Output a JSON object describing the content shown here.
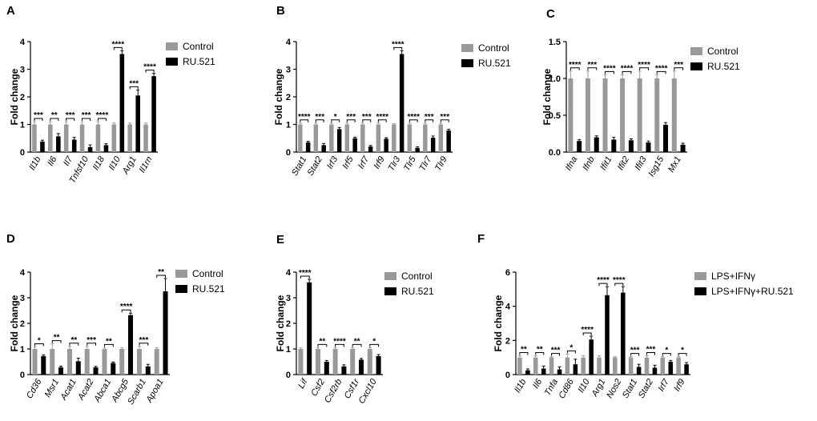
{
  "figure": {
    "colors": {
      "control": "#999999",
      "treatment": "#000000",
      "axis": "#000000"
    },
    "panels_note": "six bar-chart panels A-F"
  },
  "chart_data": [
    {
      "type": "bar",
      "panel": "A",
      "ylabel": "Fold change",
      "ylim": [
        0,
        4
      ],
      "yticks": [
        0,
        1,
        2,
        3,
        4
      ],
      "categories": [
        "Il1b",
        "Il6",
        "Il7",
        "Tnfsf10",
        "Il18",
        "Il10",
        "Arg1",
        "Il1rn"
      ],
      "series": [
        {
          "name": "Control",
          "values": [
            1,
            1,
            1,
            1,
            1,
            1,
            1,
            1
          ],
          "errors": [
            0.1,
            0.1,
            0.1,
            0.1,
            0.1,
            0.05,
            0.05,
            0.05
          ]
        },
        {
          "name": "RU.521",
          "values": [
            0.38,
            0.57,
            0.45,
            0.18,
            0.25,
            3.55,
            2.05,
            2.75
          ],
          "errors": [
            0.05,
            0.1,
            0.08,
            0.08,
            0.05,
            0.12,
            0.2,
            0.1
          ]
        }
      ],
      "significance": [
        "***",
        "**",
        "***",
        "***",
        "****",
        "****",
        "***",
        "****"
      ]
    },
    {
      "type": "bar",
      "panel": "B",
      "ylabel": "Fold change",
      "ylim": [
        0,
        4
      ],
      "yticks": [
        0,
        1,
        2,
        3,
        4
      ],
      "categories": [
        "Stat1",
        "Stat2",
        "Irf3",
        "Irf5",
        "Irf7",
        "Irf9",
        "Tlr3",
        "Tlr5",
        "Tlr7",
        "Tlr9"
      ],
      "series": [
        {
          "name": "Control",
          "values": [
            1,
            1,
            1,
            1,
            1,
            1,
            1,
            1,
            1,
            1
          ],
          "errors": [
            0.05,
            0.05,
            0.05,
            0.05,
            0.05,
            0.05,
            0.03,
            0.05,
            0.05,
            0.05
          ]
        },
        {
          "name": "RU.521",
          "values": [
            0.35,
            0.25,
            0.83,
            0.5,
            0.2,
            0.48,
            3.55,
            0.15,
            0.52,
            0.78
          ],
          "errors": [
            0.04,
            0.06,
            0.06,
            0.04,
            0.04,
            0.04,
            0.12,
            0.04,
            0.06,
            0.05
          ]
        }
      ],
      "significance": [
        "****",
        "***",
        "*",
        "***",
        "***",
        "****",
        "****",
        "****",
        "***",
        "***"
      ]
    },
    {
      "type": "bar",
      "panel": "C",
      "ylabel": "Fold change",
      "ylim": [
        0,
        1.5
      ],
      "yticks": [
        "0.0",
        "0.5",
        "1.0",
        "1.5"
      ],
      "categories": [
        "Ifna",
        "Ifnb",
        "Ifit1",
        "Ifit2",
        "Ifit3",
        "Isg15",
        "Mx1"
      ],
      "series": [
        {
          "name": "Control",
          "values": [
            1,
            1,
            1,
            1,
            1,
            1,
            1
          ],
          "errors": [
            0.1,
            0.1,
            0.05,
            0.05,
            0.1,
            0.05,
            0.1
          ]
        },
        {
          "name": "RU.521",
          "values": [
            0.15,
            0.2,
            0.17,
            0.16,
            0.13,
            0.37,
            0.1
          ],
          "errors": [
            0.02,
            0.02,
            0.03,
            0.02,
            0.02,
            0.03,
            0.02
          ]
        }
      ],
      "significance": [
        "****",
        "***",
        "****",
        "****",
        "****",
        "****",
        "***"
      ]
    },
    {
      "type": "bar",
      "panel": "D",
      "ylabel": "Fold change",
      "ylim": [
        0,
        4
      ],
      "yticks": [
        0,
        1,
        2,
        3,
        4
      ],
      "categories": [
        "Cd36",
        "Msr1",
        "Acat1",
        "Acat2",
        "Abca1",
        "Abcg5",
        "Scarb1",
        "Apoa1"
      ],
      "series": [
        {
          "name": "Control",
          "values": [
            1,
            1,
            1,
            1,
            1,
            1,
            1,
            1
          ],
          "errors": [
            0.08,
            0.2,
            0.1,
            0.1,
            0.05,
            0.05,
            0.1,
            0.05
          ]
        },
        {
          "name": "RU.521",
          "values": [
            0.72,
            0.28,
            0.52,
            0.28,
            0.45,
            2.32,
            0.32,
            3.25
          ],
          "errors": [
            0.05,
            0.05,
            0.12,
            0.04,
            0.04,
            0.08,
            0.08,
            0.5
          ]
        }
      ],
      "significance": [
        "*",
        "**",
        "**",
        "***",
        "**",
        "****",
        "***",
        "**"
      ]
    },
    {
      "type": "bar",
      "panel": "E",
      "ylabel": "Fold change",
      "ylim": [
        0,
        4
      ],
      "yticks": [
        0,
        1,
        2,
        3,
        4
      ],
      "categories": [
        "Lif",
        "Csf2",
        "Csf2rb",
        "Csf1r",
        "Cxcl10"
      ],
      "series": [
        {
          "name": "Control",
          "values": [
            1,
            1,
            1,
            1,
            1
          ],
          "errors": [
            0.05,
            0.05,
            0.05,
            0.05,
            0.05
          ]
        },
        {
          "name": "RU.521",
          "values": [
            3.6,
            0.5,
            0.32,
            0.58,
            0.72
          ],
          "errors": [
            0.12,
            0.05,
            0.06,
            0.05,
            0.06
          ]
        }
      ],
      "significance": [
        "****",
        "**",
        "****",
        "**",
        "*"
      ]
    },
    {
      "type": "bar",
      "panel": "F",
      "ylabel": "Fold change",
      "ylim": [
        0,
        6
      ],
      "yticks": [
        0,
        2,
        4,
        6
      ],
      "categories": [
        "Il1b",
        "Il6",
        "Tnfa",
        "Cd86",
        "Il10",
        "Arg1",
        "Nos2",
        "Stat1",
        "Stat2",
        "Irf7",
        "Irf9"
      ],
      "series": [
        {
          "name": "LPS+IFNγ",
          "values": [
            1,
            1,
            1,
            1,
            1,
            1,
            1,
            1,
            1,
            1,
            1
          ],
          "errors": [
            0.1,
            0.1,
            0.05,
            0.2,
            0.1,
            0.1,
            0.05,
            0.05,
            0.1,
            0.05,
            0.05
          ]
        },
        {
          "name": "LPS+IFNγ+RU.521",
          "values": [
            0.25,
            0.35,
            0.3,
            0.6,
            2.05,
            4.65,
            4.8,
            0.45,
            0.4,
            0.75,
            0.6
          ],
          "errors": [
            0.08,
            0.15,
            0.15,
            0.3,
            0.2,
            0.5,
            0.35,
            0.15,
            0.15,
            0.08,
            0.1
          ]
        }
      ],
      "significance": [
        "**",
        "**",
        "***",
        "*",
        "****",
        "****",
        "****",
        "***",
        "***",
        "*",
        "*"
      ]
    }
  ]
}
